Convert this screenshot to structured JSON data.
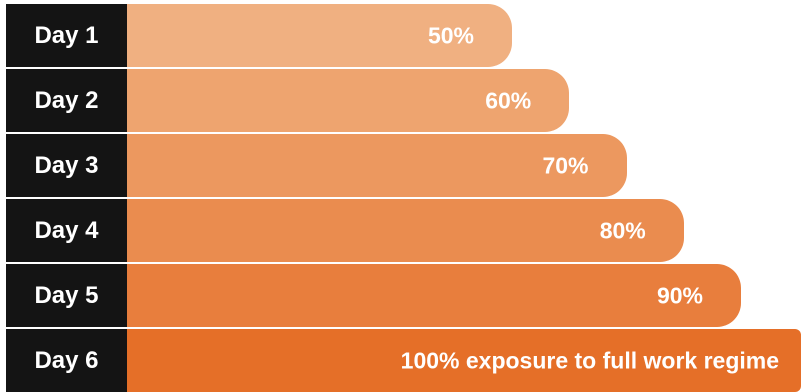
{
  "chart_data": {
    "type": "bar",
    "orientation": "horizontal",
    "categories": [
      "Day 1",
      "Day 2",
      "Day 3",
      "Day 4",
      "Day 5",
      "Day 6"
    ],
    "values": [
      50,
      60,
      70,
      80,
      90,
      100
    ],
    "value_labels": [
      "50%",
      "60%",
      "70%",
      "80%",
      "90%",
      "100% exposure to full work regime"
    ],
    "title": "",
    "xlabel": "",
    "ylabel": "",
    "xlim": [
      0,
      100
    ],
    "grid": false,
    "colors": [
      "#f0b081",
      "#eea46f",
      "#ec985f",
      "#ea8c4f",
      "#e87e3d",
      "#e56f28"
    ],
    "label_color": "#141414"
  }
}
